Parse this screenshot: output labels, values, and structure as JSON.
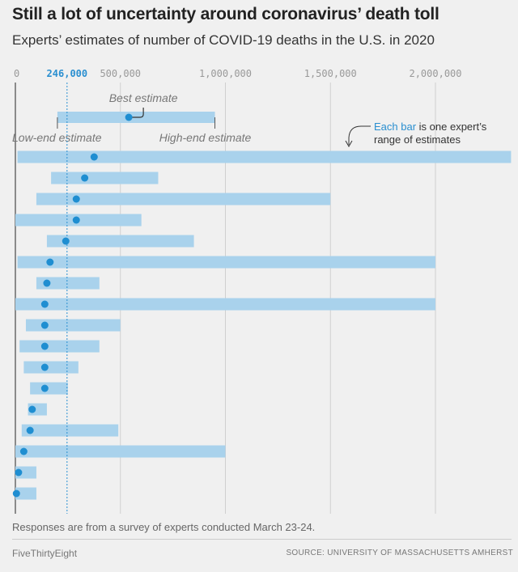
{
  "title": "Still a lot of uncertainty around coronavirus’ death toll",
  "subtitle": "Experts’ estimates of number of COVID-19 deaths in the U.S. in 2020",
  "note": "Responses are from a survey of experts conducted March 23-24.",
  "brand": "FiveThirtyEight",
  "source": "SOURCE: UNIVERSITY OF MASSACHUSETTS AMHERST",
  "legend": {
    "best": "Best estimate",
    "low": "Low-end estimate",
    "high": "High-end estimate",
    "each_bar_highlight": "Each bar",
    "each_bar_rest": " is one expert’s",
    "each_bar_line2": "range of estimates"
  },
  "colors": {
    "bar": "#a9d2ec",
    "dot": "#1f8ed1",
    "highlight": "#2a8fd0",
    "grid": "#cfcfcf",
    "axis": "#555555"
  },
  "chart_data": {
    "type": "range-bar",
    "x_unit": "deaths",
    "xlim": [
      0,
      2360000
    ],
    "x_ticks": [
      {
        "value": 0,
        "label": "0"
      },
      {
        "value": 246000,
        "label": "246,000",
        "highlight": true
      },
      {
        "value": 500000,
        "label": "500,000"
      },
      {
        "value": 1000000,
        "label": "1,000,000"
      },
      {
        "value": 1500000,
        "label": "1,500,000"
      },
      {
        "value": 2000000,
        "label": "2,000,000"
      }
    ],
    "reference_line": 246000,
    "legend_example": {
      "low": 200000,
      "best": 540000,
      "high": 950000
    },
    "series": [
      {
        "low": 10000,
        "best": 375000,
        "high": 2360000
      },
      {
        "low": 170000,
        "best": 330000,
        "high": 680000
      },
      {
        "low": 100000,
        "best": 290000,
        "high": 1500000
      },
      {
        "low": 0,
        "best": 290000,
        "high": 600000
      },
      {
        "low": 150000,
        "best": 240000,
        "high": 850000
      },
      {
        "low": 10000,
        "best": 165000,
        "high": 2000000
      },
      {
        "low": 100000,
        "best": 150000,
        "high": 400000
      },
      {
        "low": 0,
        "best": 140000,
        "high": 2000000
      },
      {
        "low": 50000,
        "best": 140000,
        "high": 500000
      },
      {
        "low": 20000,
        "best": 140000,
        "high": 400000
      },
      {
        "low": 40000,
        "best": 140000,
        "high": 300000
      },
      {
        "low": 70000,
        "best": 140000,
        "high": 250000
      },
      {
        "low": 60000,
        "best": 80000,
        "high": 150000
      },
      {
        "low": 30000,
        "best": 70000,
        "high": 490000
      },
      {
        "low": 0,
        "best": 40000,
        "high": 1000000
      },
      {
        "low": 0,
        "best": 15000,
        "high": 100000
      },
      {
        "low": 0,
        "best": 5000,
        "high": 100000
      }
    ]
  }
}
